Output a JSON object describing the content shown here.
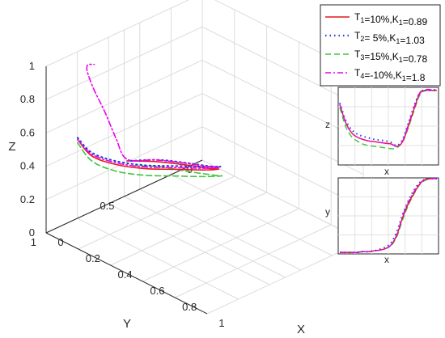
{
  "chart_data": [
    {
      "type": "line",
      "projection": "3d",
      "xlabel": "X",
      "ylabel": "Y",
      "zlabel": "Z",
      "xlim": [
        0,
        1
      ],
      "ylim": [
        0,
        1
      ],
      "zlim": [
        0,
        1
      ],
      "xticks": [
        "0",
        "0.2",
        "0.4",
        "0.6",
        "0.8",
        "1"
      ],
      "yticks": [
        "0",
        "0.5",
        "1"
      ],
      "zticks": [
        "0",
        "0.2",
        "0.4",
        "0.6",
        "0.8",
        "1"
      ],
      "grid": true,
      "legend_position": "top-right",
      "series": [
        {
          "name_main": "T",
          "name_sub": "1",
          "name_mid": "=10%,K",
          "name_sub2": "1",
          "name_end": "=0.89",
          "color": "#e41a1c",
          "style": "solid",
          "points": [
            [
              0.05,
              0.85,
              0.52
            ],
            [
              0.07,
              0.78,
              0.4
            ],
            [
              0.12,
              0.68,
              0.33
            ],
            [
              0.2,
              0.58,
              0.3
            ],
            [
              0.3,
              0.48,
              0.3
            ],
            [
              0.4,
              0.4,
              0.31
            ],
            [
              0.47,
              0.38,
              0.34
            ],
            [
              0.48,
              0.45,
              0.38
            ],
            [
              0.43,
              0.55,
              0.42
            ],
            [
              0.34,
              0.65,
              0.44
            ],
            [
              0.25,
              0.74,
              0.44
            ]
          ]
        },
        {
          "name_main": "T",
          "name_sub": "2",
          "name_mid": "= 5%,K",
          "name_sub2": "1",
          "name_end": "=1.03",
          "color": "#1f3fd8",
          "style": "dotted",
          "points": [
            [
              0.05,
              0.85,
              0.53
            ],
            [
              0.07,
              0.78,
              0.42
            ],
            [
              0.12,
              0.68,
              0.35
            ],
            [
              0.2,
              0.58,
              0.32
            ],
            [
              0.3,
              0.48,
              0.32
            ],
            [
              0.4,
              0.4,
              0.33
            ],
            [
              0.48,
              0.38,
              0.36
            ],
            [
              0.5,
              0.45,
              0.4
            ],
            [
              0.45,
              0.55,
              0.44
            ],
            [
              0.36,
              0.65,
              0.46
            ],
            [
              0.27,
              0.74,
              0.45
            ]
          ]
        },
        {
          "name_main": "T",
          "name_sub": "3",
          "name_mid": "=15%,K",
          "name_sub2": "1",
          "name_end": "=0.78",
          "color": "#3ec63e",
          "style": "dashed",
          "points": [
            [
              0.05,
              0.85,
              0.5
            ],
            [
              0.07,
              0.78,
              0.37
            ],
            [
              0.12,
              0.68,
              0.29
            ],
            [
              0.2,
              0.58,
              0.26
            ],
            [
              0.3,
              0.48,
              0.26
            ],
            [
              0.4,
              0.4,
              0.27
            ],
            [
              0.48,
              0.37,
              0.3
            ],
            [
              0.5,
              0.45,
              0.35
            ],
            [
              0.45,
              0.55,
              0.39
            ],
            [
              0.36,
              0.65,
              0.42
            ],
            [
              0.27,
              0.74,
              0.42
            ]
          ]
        },
        {
          "name_main": "T",
          "name_sub": "4",
          "name_mid": "=-10%,K",
          "name_sub2": "1",
          "name_end": "=1.8",
          "color": "#ee00ee",
          "style": "dashdot",
          "points": [
            [
              0.05,
              0.85,
              0.52
            ],
            [
              0.07,
              0.78,
              0.41
            ],
            [
              0.12,
              0.68,
              0.34
            ],
            [
              0.2,
              0.58,
              0.31
            ],
            [
              0.3,
              0.48,
              0.31
            ],
            [
              0.4,
              0.4,
              0.32
            ],
            [
              0.47,
              0.38,
              0.35
            ],
            [
              0.48,
              0.45,
              0.39
            ],
            [
              0.43,
              0.55,
              0.43
            ],
            [
              0.34,
              0.65,
              0.45
            ],
            [
              0.25,
              0.74,
              0.45
            ],
            [
              0.22,
              0.78,
              0.58
            ],
            [
              0.19,
              0.82,
              0.74
            ],
            [
              0.16,
              0.86,
              0.88
            ],
            [
              0.15,
              0.89,
              0.99
            ],
            [
              0.18,
              0.92,
              1.06
            ],
            [
              0.26,
              0.96,
              1.12
            ]
          ]
        }
      ]
    },
    {
      "type": "line",
      "xlabel": "x",
      "ylabel": "z",
      "grid": true,
      "series_values": {
        "red": [
          0.78,
          0.55,
          0.42,
          0.36,
          0.33,
          0.31,
          0.3,
          0.29,
          0.28,
          0.27,
          0.24,
          0.3,
          0.5,
          0.72,
          0.92,
          0.96,
          0.96,
          0.96
        ],
        "blue": [
          0.8,
          0.58,
          0.46,
          0.4,
          0.37,
          0.35,
          0.33,
          0.32,
          0.31,
          0.29,
          0.25,
          0.33,
          0.54,
          0.76,
          0.93,
          0.96,
          0.96,
          0.96
        ],
        "green": [
          0.74,
          0.5,
          0.37,
          0.31,
          0.27,
          0.25,
          0.24,
          0.23,
          0.22,
          0.21,
          0.22,
          0.3,
          0.48,
          0.7,
          0.9,
          0.96,
          0.96,
          0.96
        ],
        "magenta": [
          0.78,
          0.55,
          0.42,
          0.36,
          0.33,
          0.31,
          0.3,
          0.29,
          0.28,
          0.27,
          0.24,
          0.31,
          0.52,
          0.74,
          0.93,
          0.97,
          0.97,
          0.97
        ]
      }
    },
    {
      "type": "line",
      "xlabel": "x",
      "ylabel": "y",
      "grid": true,
      "series_values": {
        "red": [
          0.02,
          0.02,
          0.02,
          0.02,
          0.03,
          0.03,
          0.04,
          0.05,
          0.07,
          0.12,
          0.25,
          0.48,
          0.66,
          0.8,
          0.92,
          0.98,
          0.99,
          0.99
        ],
        "blue": [
          0.02,
          0.02,
          0.02,
          0.02,
          0.03,
          0.03,
          0.04,
          0.06,
          0.09,
          0.15,
          0.3,
          0.52,
          0.7,
          0.84,
          0.94,
          0.98,
          0.99,
          0.99
        ],
        "green": [
          0.02,
          0.02,
          0.02,
          0.02,
          0.03,
          0.03,
          0.04,
          0.05,
          0.07,
          0.11,
          0.23,
          0.45,
          0.64,
          0.79,
          0.91,
          0.97,
          0.99,
          0.99
        ],
        "magenta": [
          0.02,
          0.02,
          0.02,
          0.02,
          0.03,
          0.03,
          0.04,
          0.05,
          0.07,
          0.12,
          0.26,
          0.5,
          0.68,
          0.82,
          0.93,
          0.98,
          0.99,
          0.99
        ]
      }
    }
  ]
}
